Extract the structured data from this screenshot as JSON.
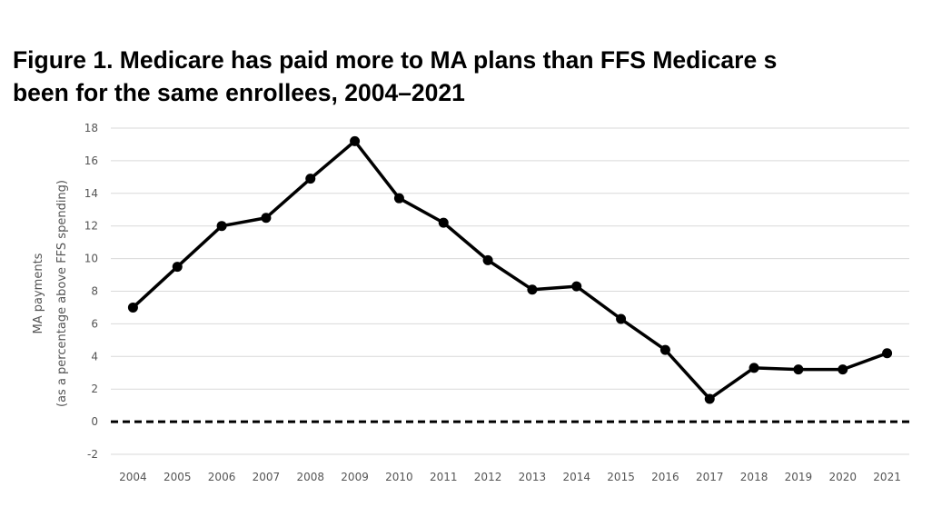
{
  "title": {
    "line1": "Figure 1.  Medicare has paid more to MA plans than FFS Medicare s",
    "line2": "been for the same enrollees, 2004–2021"
  },
  "chart_data": {
    "type": "line",
    "x": [
      "2004",
      "2005",
      "2006",
      "2007",
      "2008",
      "2009",
      "2010",
      "2011",
      "2012",
      "2013",
      "2014",
      "2015",
      "2016",
      "2017",
      "2018",
      "2019",
      "2020",
      "2021"
    ],
    "series": [
      {
        "values": [
          7.0,
          9.5,
          12.0,
          12.5,
          14.9,
          17.2,
          13.7,
          12.2,
          9.9,
          8.1,
          8.3,
          6.3,
          4.4,
          1.4,
          3.3,
          3.2,
          3.2,
          4.2
        ]
      }
    ],
    "ylabel_line1": "MA payments",
    "ylabel_line2": "(as a percentage above FFS spending)",
    "ylim": [
      -2,
      18
    ],
    "yticks": [
      -2,
      0,
      2,
      4,
      6,
      8,
      10,
      12,
      14,
      16,
      18
    ],
    "grid": true,
    "reference_line": {
      "y": 0,
      "style": "dashed"
    },
    "line_color": "#000000",
    "grid_color": "#d9d9d9"
  }
}
